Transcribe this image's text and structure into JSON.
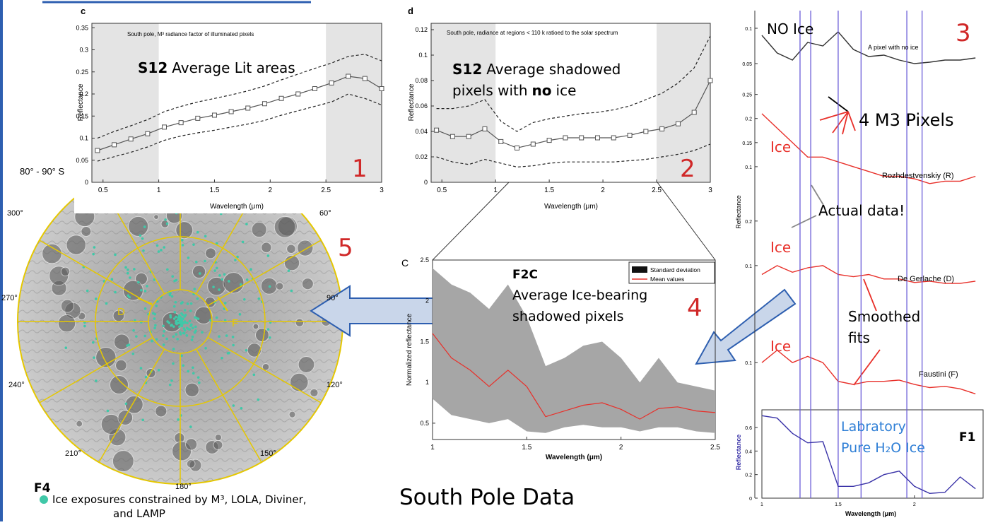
{
  "chart_data": [
    {
      "type": "line",
      "letter": "c",
      "title": "South pole, M³ radiance factor of illuminated pixels",
      "highlight": "S12",
      "annotation": "Average Lit areas",
      "number": "1",
      "xlabel": "Wavelength (μm)",
      "ylabel": "Reflectance",
      "x": [
        0.45,
        0.6,
        0.75,
        0.9,
        1.05,
        1.2,
        1.35,
        1.5,
        1.65,
        1.8,
        1.95,
        2.1,
        2.25,
        2.4,
        2.55,
        2.7,
        2.85,
        3.0
      ],
      "series": [
        {
          "color": "#555555",
          "marker": "square",
          "values": [
            0.072,
            0.085,
            0.098,
            0.11,
            0.125,
            0.135,
            0.145,
            0.152,
            0.16,
            0.168,
            0.178,
            0.19,
            0.2,
            0.212,
            0.225,
            0.24,
            0.235,
            0.212
          ]
        },
        {
          "color": "#222222",
          "style": "dashed",
          "values": [
            0.1,
            0.115,
            0.128,
            0.142,
            0.16,
            0.172,
            0.182,
            0.19,
            0.198,
            0.207,
            0.218,
            0.232,
            0.245,
            0.258,
            0.27,
            0.285,
            0.29,
            0.275
          ]
        },
        {
          "color": "#222222",
          "style": "dashed",
          "values": [
            0.048,
            0.058,
            0.068,
            0.08,
            0.095,
            0.105,
            0.112,
            0.118,
            0.125,
            0.132,
            0.14,
            0.152,
            0.162,
            0.172,
            0.182,
            0.2,
            0.19,
            0.175
          ]
        }
      ],
      "shaded_regions": [
        [
          0.4,
          1.0
        ],
        [
          2.5,
          3.0
        ]
      ],
      "xlim": [
        0.4,
        3.0
      ],
      "xticks": [
        0.5,
        1,
        1.5,
        2,
        2.5,
        3
      ],
      "ylim": [
        0,
        0.36
      ],
      "yticks": [
        0,
        0.05,
        0.1,
        0.15,
        0.2,
        0.25,
        0.3,
        0.35
      ]
    },
    {
      "type": "line",
      "letter": "d",
      "title": "South pole, radiance at regions < 110 k ratioed to the solar spectrum",
      "highlight": "S12",
      "annotation": "Average shadowed",
      "annotation_2": "pixels with",
      "annotation_bold": "no",
      "annotation_3": "ice",
      "number": "2",
      "xlabel": "Wavelength (μm)",
      "ylabel": "Reflectance",
      "x": [
        0.45,
        0.6,
        0.75,
        0.9,
        1.05,
        1.2,
        1.35,
        1.5,
        1.65,
        1.8,
        1.95,
        2.1,
        2.25,
        2.4,
        2.55,
        2.7,
        2.85,
        3.0
      ],
      "series": [
        {
          "color": "#555555",
          "marker": "square",
          "values": [
            0.041,
            0.036,
            0.036,
            0.042,
            0.032,
            0.027,
            0.03,
            0.033,
            0.035,
            0.035,
            0.035,
            0.035,
            0.037,
            0.04,
            0.042,
            0.046,
            0.055,
            0.08
          ]
        },
        {
          "color": "#222222",
          "style": "dashed",
          "values": [
            0.058,
            0.058,
            0.06,
            0.065,
            0.048,
            0.04,
            0.047,
            0.05,
            0.052,
            0.054,
            0.055,
            0.057,
            0.06,
            0.065,
            0.07,
            0.078,
            0.09,
            0.115
          ]
        },
        {
          "color": "#222222",
          "style": "dashed",
          "values": [
            0.02,
            0.016,
            0.014,
            0.018,
            0.015,
            0.012,
            0.013,
            0.015,
            0.016,
            0.016,
            0.016,
            0.016,
            0.017,
            0.018,
            0.02,
            0.022,
            0.025,
            0.03
          ]
        }
      ],
      "shaded_regions": [
        [
          0.4,
          1.0
        ],
        [
          2.5,
          3.0
        ]
      ],
      "xlim": [
        0.4,
        3.0
      ],
      "xticks": [
        0.5,
        1,
        1.5,
        2,
        2.5,
        3
      ],
      "ylim": [
        0,
        0.125
      ],
      "yticks": [
        0,
        0.02,
        0.04,
        0.06,
        0.08,
        0.1,
        0.12
      ]
    },
    {
      "type": "line",
      "letter": "C",
      "highlight": "F2C",
      "annotation": "Average Ice-bearing",
      "annotation_2": "shadowed pixels",
      "number": "4",
      "xlabel": "Wavelength (μm)",
      "ylabel": "Normalized reflectance",
      "x": [
        1.0,
        1.1,
        1.2,
        1.3,
        1.4,
        1.5,
        1.6,
        1.7,
        1.8,
        1.9,
        2.0,
        2.1,
        2.2,
        2.3,
        2.4,
        2.5
      ],
      "series": [
        {
          "name": "Standard deviation",
          "color": "#a6a6a6",
          "upper": [
            2.4,
            2.2,
            2.1,
            1.9,
            2.2,
            1.8,
            1.2,
            1.3,
            1.45,
            1.5,
            1.3,
            1.0,
            1.3,
            1.0,
            0.95,
            0.9
          ],
          "lower": [
            0.8,
            0.6,
            0.55,
            0.5,
            0.55,
            0.4,
            0.38,
            0.45,
            0.48,
            0.45,
            0.45,
            0.4,
            0.45,
            0.45,
            0.4,
            0.38
          ]
        },
        {
          "name": "Mean values",
          "color": "#e8302a",
          "values": [
            1.6,
            1.3,
            1.15,
            0.95,
            1.15,
            0.95,
            0.58,
            0.65,
            0.72,
            0.75,
            0.67,
            0.55,
            0.68,
            0.7,
            0.65,
            0.63
          ]
        }
      ],
      "xlim": [
        1,
        2.5
      ],
      "xticks": [
        1,
        1.5,
        2,
        2.5
      ],
      "ylim": [
        0.3,
        2.5
      ],
      "yticks": [
        0.5,
        1,
        1.5,
        2,
        2.5
      ]
    },
    {
      "type": "line",
      "label": "NO Ice",
      "site": "A pixel with no ice",
      "x": [
        1.0,
        1.1,
        1.2,
        1.3,
        1.4,
        1.5,
        1.6,
        1.7,
        1.8,
        1.9,
        2.0,
        2.1,
        2.2,
        2.3,
        2.4
      ],
      "series": [
        {
          "color": "#333333",
          "values": [
            0.09,
            0.065,
            0.055,
            0.08,
            0.075,
            0.095,
            0.07,
            0.06,
            0.062,
            0.055,
            0.05,
            0.052,
            0.055,
            0.055,
            0.058
          ]
        }
      ],
      "xlim": [
        1,
        2.45
      ],
      "ylim": [
        0.03,
        0.12
      ],
      "yticks": [
        0.05,
        0.1
      ]
    },
    {
      "type": "line",
      "label": "Ice",
      "site": "Rozhdestvenskiy (R)",
      "ylabel": "Reflectance",
      "x": [
        1.0,
        1.1,
        1.2,
        1.3,
        1.4,
        1.5,
        1.6,
        1.7,
        1.8,
        1.9,
        2.0,
        2.1,
        2.2,
        2.3,
        2.4
      ],
      "series": [
        {
          "color": "#e8302a",
          "values": [
            0.21,
            0.18,
            0.15,
            0.12,
            0.12,
            0.11,
            0.1,
            0.09,
            0.08,
            0.08,
            0.075,
            0.065,
            0.07,
            0.07,
            0.08
          ]
        }
      ],
      "xlim": [
        1,
        2.45
      ],
      "ylim": [
        0.05,
        0.27
      ],
      "yticks": [
        0.1,
        0.15,
        0.2,
        0.25
      ]
    },
    {
      "type": "line",
      "label": "Ice",
      "site": "De Gerlache (D)",
      "x": [
        1.0,
        1.1,
        1.2,
        1.3,
        1.4,
        1.5,
        1.6,
        1.7,
        1.8,
        1.9,
        2.0,
        2.1,
        2.2,
        2.3,
        2.4
      ],
      "series": [
        {
          "color": "#e8302a",
          "values": [
            0.08,
            0.1,
            0.085,
            0.095,
            0.1,
            0.08,
            0.075,
            0.08,
            0.07,
            0.07,
            0.062,
            0.065,
            0.06,
            0.06,
            0.065
          ]
        }
      ],
      "xlim": [
        1,
        2.45
      ],
      "ylim": [
        0.03,
        0.26
      ],
      "yticks": [
        0.1,
        0.2
      ]
    },
    {
      "type": "line",
      "label": "Ice",
      "site": "Faustini (F)",
      "x": [
        1.0,
        1.1,
        1.2,
        1.3,
        1.4,
        1.5,
        1.6,
        1.7,
        1.8,
        1.9,
        2.0,
        2.1,
        2.2,
        2.3,
        2.4
      ],
      "series": [
        {
          "color": "#e8302a",
          "values": [
            0.1,
            0.12,
            0.1,
            0.11,
            0.1,
            0.07,
            0.065,
            0.07,
            0.07,
            0.072,
            0.065,
            0.06,
            0.062,
            0.058,
            0.05
          ]
        }
      ],
      "xlim": [
        1,
        2.45
      ],
      "ylim": [
        0.03,
        0.2
      ],
      "yticks": [
        0.1
      ]
    },
    {
      "type": "line",
      "label": [
        "Labratory",
        "Pure H₂O Ice"
      ],
      "xlabel": "Wavelength (μm)",
      "ylabel": "Reflectance",
      "x": [
        1.0,
        1.1,
        1.2,
        1.3,
        1.4,
        1.5,
        1.6,
        1.7,
        1.8,
        1.9,
        2.0,
        2.1,
        2.2,
        2.3,
        2.4
      ],
      "series": [
        {
          "color": "#3a33a8",
          "values": [
            0.7,
            0.68,
            0.55,
            0.47,
            0.48,
            0.1,
            0.1,
            0.13,
            0.2,
            0.23,
            0.1,
            0.04,
            0.05,
            0.18,
            0.08
          ]
        }
      ],
      "reference_lines": [
        1.25,
        1.32,
        1.5,
        1.65,
        1.95,
        2.05
      ],
      "xlim": [
        1,
        2.45
      ],
      "xticks": [
        1,
        1.5,
        2
      ],
      "ylim": [
        0,
        0.75
      ],
      "yticks": [
        0,
        0.2,
        0.4,
        0.6
      ]
    }
  ],
  "f1": {
    "id": "F1",
    "number": "3",
    "pixels": "4 M3 Pixels",
    "actual": "Actual data!",
    "smoothed": "Smoothed",
    "smoothed_2": "fits"
  },
  "map": {
    "title": "80° - 90° S",
    "number": "5",
    "id": "F4",
    "longitude_labels": [
      "300°",
      "60°",
      "270°",
      "90°",
      "240°",
      "120°",
      "210°",
      "150°",
      "180°"
    ],
    "markers": [
      "D",
      "F"
    ],
    "legend": "Ice exposures constrained by M³, LOLA, Diviner,",
    "legend_2": "and LAMP"
  },
  "slide_title": "South Pole Data"
}
